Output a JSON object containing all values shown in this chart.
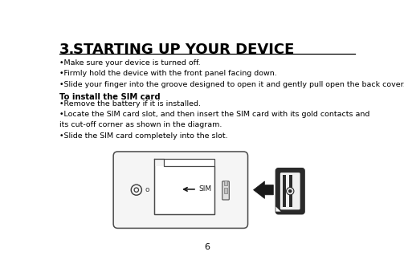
{
  "title_number": "3.",
  "title_text": "STARTING UP YOUR DEVICE",
  "title_fontsize": 13,
  "title_color": "#000000",
  "separator_color": "#000000",
  "body_text_1": "•Make sure your device is turned off.\n•Firmly hold the device with the front panel facing down.\n•Slide your finger into the groove designed to open it and gently pull open the back cover.",
  "subtitle": "To install the SIM card",
  "body_text_2": "•Remove the battery if it is installed.\n•Locate the SIM card slot, and then insert the SIM card with its gold contacts and\nits cut-off corner as shown in the diagram.\n•Slide the SIM card completely into the slot.",
  "page_number": "6",
  "background_color": "#ffffff",
  "text_color": "#000000",
  "body_fontsize": 6.8,
  "subtitle_fontsize": 7.2,
  "page_num_fontsize": 8
}
